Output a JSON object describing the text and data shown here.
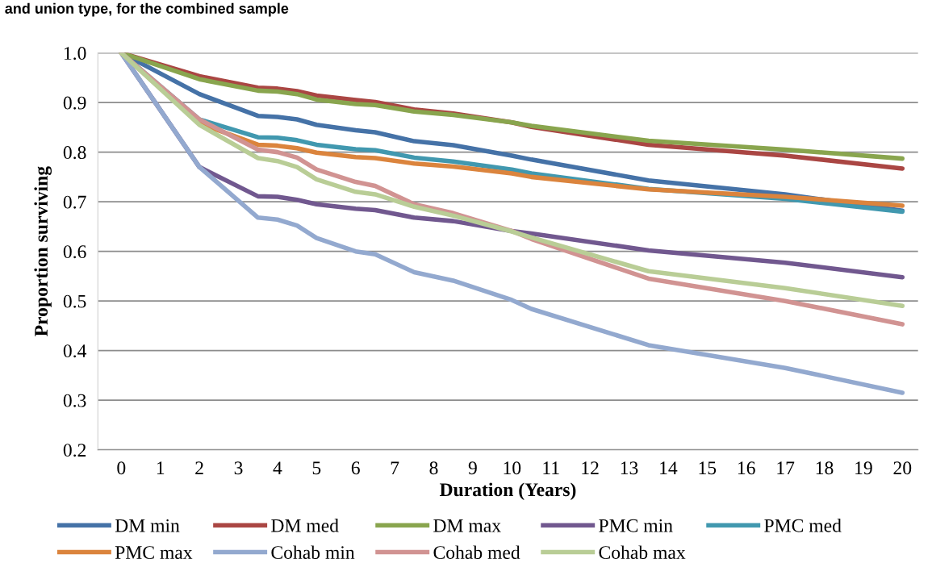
{
  "chart_data": {
    "type": "line",
    "title": "and union type, for the combined sample",
    "xlabel": "Duration (Years)",
    "ylabel": "Proportion surviving",
    "x": [
      0,
      2,
      3.5,
      4,
      4.5,
      5,
      6,
      6.5,
      7.5,
      8.5,
      10,
      10.5,
      13.5,
      17,
      20
    ],
    "xlim": [
      -0.6,
      20.4
    ],
    "xticks": [
      0,
      1,
      2,
      3,
      4,
      5,
      6,
      7,
      8,
      9,
      10,
      11,
      12,
      13,
      14,
      15,
      16,
      17,
      18,
      19,
      20
    ],
    "ylim": [
      0.2,
      1.0
    ],
    "yticks": [
      {
        "value": 0.2,
        "label": "0.2"
      },
      {
        "value": 0.3,
        "label": "0.3"
      },
      {
        "value": 0.4,
        "label": "0.4"
      },
      {
        "value": 0.5,
        "label": "0.5"
      },
      {
        "value": 0.6,
        "label": "0.6"
      },
      {
        "value": 0.7,
        "label": "0.7"
      },
      {
        "value": 0.8,
        "label": "0.8"
      },
      {
        "value": 0.9,
        "label": "0.9"
      },
      {
        "value": 1.0,
        "label": "1.0"
      }
    ],
    "grid": "y",
    "legend": "bottom",
    "marker": "none",
    "line_style": "solid",
    "series": [
      {
        "name": "DM min",
        "color": "#4572a7",
        "values": [
          1.0,
          0.917,
          0.873,
          0.871,
          0.866,
          0.855,
          0.844,
          0.84,
          0.822,
          0.814,
          0.793,
          0.785,
          0.743,
          0.715,
          0.682
        ]
      },
      {
        "name": "DM med",
        "color": "#aa4643",
        "values": [
          1.0,
          0.953,
          0.93,
          0.928,
          0.923,
          0.914,
          0.905,
          0.901,
          0.886,
          0.878,
          0.86,
          0.851,
          0.815,
          0.793,
          0.767
        ]
      },
      {
        "name": "DM max",
        "color": "#89a54e",
        "values": [
          1.0,
          0.947,
          0.924,
          0.922,
          0.917,
          0.906,
          0.897,
          0.895,
          0.882,
          0.875,
          0.86,
          0.853,
          0.823,
          0.805,
          0.787
        ]
      },
      {
        "name": "PMC min",
        "color": "#71588f",
        "values": [
          1.0,
          0.77,
          0.711,
          0.71,
          0.704,
          0.695,
          0.686,
          0.683,
          0.668,
          0.661,
          0.641,
          0.636,
          0.602,
          0.577,
          0.548
        ]
      },
      {
        "name": "PMC med",
        "color": "#4198af",
        "values": [
          1.0,
          0.866,
          0.83,
          0.829,
          0.824,
          0.815,
          0.806,
          0.804,
          0.789,
          0.781,
          0.765,
          0.757,
          0.726,
          0.706,
          0.68
        ]
      },
      {
        "name": "PMC max",
        "color": "#db843d",
        "values": [
          1.0,
          0.858,
          0.815,
          0.813,
          0.808,
          0.799,
          0.79,
          0.788,
          0.777,
          0.771,
          0.757,
          0.75,
          0.725,
          0.71,
          0.692
        ]
      },
      {
        "name": "Cohab min",
        "color": "#93a9cf",
        "values": [
          1.0,
          0.77,
          0.668,
          0.664,
          0.652,
          0.627,
          0.6,
          0.594,
          0.558,
          0.541,
          0.502,
          0.484,
          0.411,
          0.365,
          0.315
        ]
      },
      {
        "name": "Cohab med",
        "color": "#d19392",
        "values": [
          1.0,
          0.866,
          0.805,
          0.8,
          0.789,
          0.765,
          0.74,
          0.732,
          0.695,
          0.677,
          0.641,
          0.625,
          0.545,
          0.5,
          0.453
        ]
      },
      {
        "name": "Cohab max",
        "color": "#b9cd96",
        "values": [
          1.0,
          0.855,
          0.788,
          0.782,
          0.77,
          0.745,
          0.72,
          0.715,
          0.69,
          0.672,
          0.64,
          0.628,
          0.56,
          0.526,
          0.49
        ]
      }
    ]
  }
}
